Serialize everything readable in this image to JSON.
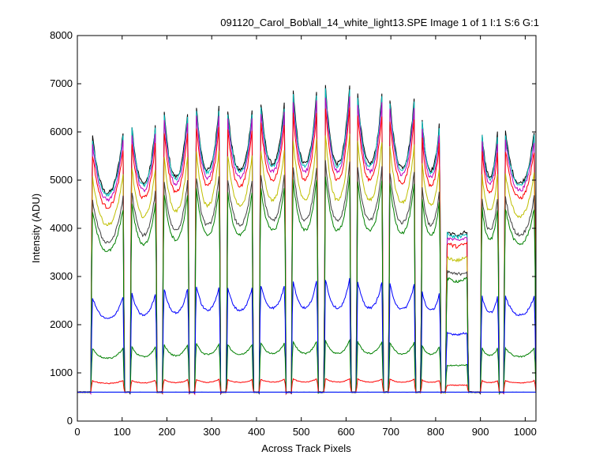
{
  "chart_data": {
    "type": "line",
    "title": "091120_Carol_Bob\\all_14_white_light13.SPE  Image 1 of 1  I:1  S:6  G:1",
    "xlabel": "Across Track Pixels",
    "ylabel": "Intensity (ADU)",
    "xlim": [
      0,
      1024
    ],
    "ylim": [
      0,
      8000
    ],
    "xticks": [
      "0",
      "100",
      "200",
      "300",
      "400",
      "500",
      "600",
      "700",
      "800",
      "900",
      "1000"
    ],
    "yticks": [
      "0",
      "1000",
      "2000",
      "3000",
      "4000",
      "5000",
      "6000",
      "7000",
      "8000"
    ],
    "grid": false,
    "legend": "none",
    "baseline": 600,
    "fibers": [
      {
        "s": 30,
        "e": 105
      },
      {
        "s": 118,
        "e": 178
      },
      {
        "s": 190,
        "e": 250
      },
      {
        "s": 262,
        "e": 320
      },
      {
        "s": 333,
        "e": 393
      },
      {
        "s": 406,
        "e": 466
      },
      {
        "s": 478,
        "e": 538
      },
      {
        "s": 551,
        "e": 611
      },
      {
        "s": 623,
        "e": 683
      },
      {
        "s": 695,
        "e": 755
      },
      {
        "s": 767,
        "e": 812
      },
      {
        "s": 822,
        "e": 873
      },
      {
        "s": 900,
        "e": 942
      },
      {
        "s": 952,
        "e": 1024
      }
    ],
    "fiber_peak_scale": [
      0.83,
      0.88,
      0.93,
      0.95,
      0.91,
      0.95,
      1.0,
      1.0,
      0.97,
      0.95,
      0.89,
      0.52,
      0.87,
      0.84
    ],
    "fiber_trough_scale": [
      0.61,
      0.64,
      0.66,
      0.68,
      0.68,
      0.7,
      0.7,
      0.7,
      0.7,
      0.69,
      0.68,
      0.48,
      0.66,
      0.64
    ],
    "series": [
      {
        "color": "#000000",
        "peak": 7380,
        "noise": 90
      },
      {
        "color": "#00bfbf",
        "peak": 7300,
        "noise": 70
      },
      {
        "color": "#bf00bf",
        "peak": 7150,
        "noise": 80
      },
      {
        "color": "#ff0000",
        "peak": 6900,
        "noise": 80
      },
      {
        "color": "#bfbf00",
        "peak": 6300,
        "noise": 70
      },
      {
        "color": "#404040",
        "peak": 5700,
        "noise": 70
      },
      {
        "color": "#008000",
        "peak": 5400,
        "noise": 65
      },
      {
        "color": "#0000ff",
        "peak": 3100,
        "noise": 45
      },
      {
        "color": "#008000",
        "peak": 1750,
        "noise": 30
      },
      {
        "color": "#ff0000",
        "peak": 900,
        "noise": 15
      },
      {
        "color": "#00bfbf",
        "peak": 600,
        "noise": 5
      },
      {
        "color": "#0000ff",
        "peak": 560,
        "noise": 6
      }
    ]
  }
}
